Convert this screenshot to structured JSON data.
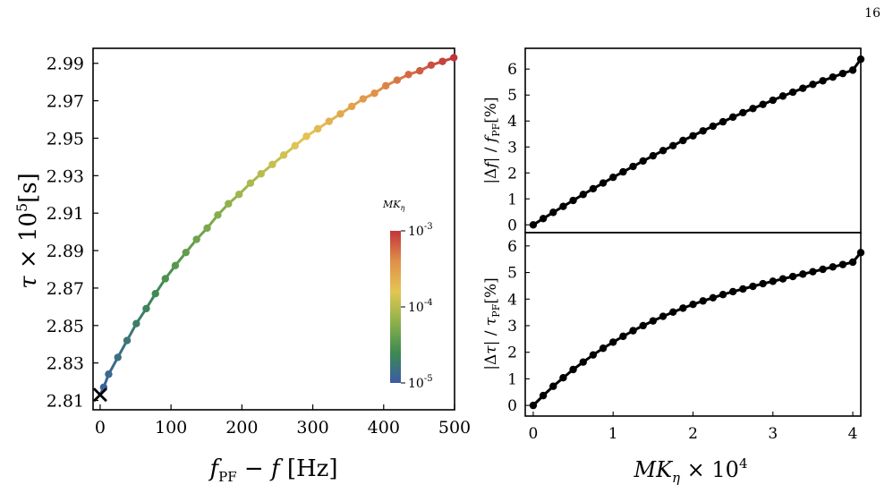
{
  "page_number": "16",
  "chart_data": [
    {
      "type": "line",
      "xlabel": "f_PF − f [Hz]",
      "ylabel": "τ × 10^5 [s]",
      "xlim": [
        -10,
        500
      ],
      "ylim": [
        2.805,
        2.998
      ],
      "x_ticks": [
        0,
        100,
        200,
        300,
        400,
        500
      ],
      "y_ticks": [
        2.81,
        2.83,
        2.85,
        2.87,
        2.89,
        2.91,
        2.93,
        2.95,
        2.97,
        2.99
      ],
      "marker_x": [
        0,
        2.813
      ],
      "colorbar": {
        "label": "MK_η",
        "scale": "log",
        "ticks": [
          "10^-5",
          "10^-4",
          "10^-3"
        ],
        "colors": [
          "#3b5ba5",
          "#3e8a52",
          "#8cb24a",
          "#e3c654",
          "#e08f4a",
          "#c1353a"
        ]
      },
      "series": [
        {
          "x": [
            5,
            12,
            25,
            38,
            51,
            65,
            78,
            92,
            106,
            121,
            136,
            151,
            166,
            181,
            196,
            212,
            227,
            243,
            259,
            275,
            291,
            307,
            323,
            339,
            355,
            371,
            387,
            403,
            419,
            435,
            451,
            467,
            483,
            499
          ],
          "y": [
            2.817,
            2.824,
            2.833,
            2.842,
            2.851,
            2.859,
            2.867,
            2.875,
            2.882,
            2.889,
            2.896,
            2.902,
            2.909,
            2.915,
            2.92,
            2.926,
            2.931,
            2.936,
            2.941,
            2.946,
            2.951,
            2.955,
            2.959,
            2.963,
            2.967,
            2.971,
            2.974,
            2.978,
            2.981,
            2.984,
            2.986,
            2.989,
            2.991,
            2.993
          ]
        }
      ]
    },
    {
      "type": "line",
      "xlabel": "",
      "ylabel": "|Δf| / f_PF [%]",
      "xlim": [
        -0.1,
        4.1
      ],
      "ylim": [
        -0.3,
        6.8
      ],
      "y_ticks": [
        0,
        1,
        2,
        3,
        4,
        5,
        6
      ],
      "series": [
        {
          "x": [
            0.0,
            0.125,
            0.25,
            0.375,
            0.5,
            0.625,
            0.75,
            0.875,
            1.0,
            1.125,
            1.25,
            1.375,
            1.5,
            1.625,
            1.75,
            1.875,
            2.0,
            2.125,
            2.25,
            2.375,
            2.5,
            2.625,
            2.75,
            2.875,
            3.0,
            3.125,
            3.25,
            3.375,
            3.5,
            3.625,
            3.75,
            3.875,
            4.0,
            4.1
          ],
          "y": [
            0.0,
            0.24,
            0.48,
            0.71,
            0.94,
            1.17,
            1.39,
            1.61,
            1.83,
            2.04,
            2.25,
            2.46,
            2.66,
            2.86,
            3.05,
            3.25,
            3.43,
            3.62,
            3.8,
            3.97,
            4.15,
            4.32,
            4.48,
            4.64,
            4.8,
            4.96,
            5.11,
            5.26,
            5.41,
            5.55,
            5.69,
            5.83,
            5.96,
            6.38
          ]
        }
      ]
    },
    {
      "type": "line",
      "xlabel": "MK_η × 10^4",
      "ylabel": "|Δτ| / τ_PF [%]",
      "xlim": [
        -0.1,
        4.1
      ],
      "ylim": [
        -0.4,
        6.5
      ],
      "x_ticks": [
        0,
        1,
        2,
        3,
        4
      ],
      "y_ticks": [
        0,
        1,
        2,
        3,
        4,
        5,
        6
      ],
      "series": [
        {
          "x": [
            0.0,
            0.125,
            0.25,
            0.375,
            0.5,
            0.625,
            0.75,
            0.875,
            1.0,
            1.125,
            1.25,
            1.375,
            1.5,
            1.625,
            1.75,
            1.875,
            2.0,
            2.125,
            2.25,
            2.375,
            2.5,
            2.625,
            2.75,
            2.875,
            3.0,
            3.125,
            3.25,
            3.375,
            3.5,
            3.625,
            3.75,
            3.875,
            4.0,
            4.1
          ],
          "y": [
            0.0,
            0.37,
            0.72,
            1.04,
            1.35,
            1.63,
            1.9,
            2.15,
            2.38,
            2.6,
            2.81,
            3.0,
            3.18,
            3.35,
            3.51,
            3.66,
            3.8,
            3.93,
            4.05,
            4.17,
            4.28,
            4.38,
            4.48,
            4.58,
            4.67,
            4.76,
            4.85,
            4.94,
            5.03,
            5.12,
            5.21,
            5.3,
            5.39,
            5.75
          ]
        }
      ]
    }
  ]
}
